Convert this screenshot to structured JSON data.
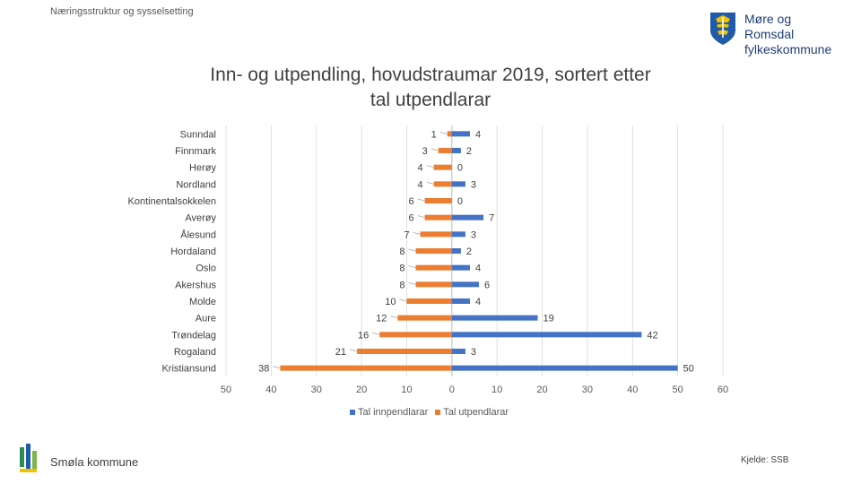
{
  "header": {
    "section": "Næringsstruktur og sysselsetting"
  },
  "logo": {
    "line1": "Møre og Romsdal",
    "line2": "fylkeskommune"
  },
  "footer": {
    "municipality": "Smøla kommune",
    "source": "Kjelde: SSB"
  },
  "colors": {
    "inn": "#4472c4",
    "ut": "#ed7d31",
    "grid": "#d9d9d9",
    "axis": "#bfbfbf"
  },
  "chart_data": {
    "type": "bar",
    "orientation": "horizontal",
    "title": "Inn- og utpendling, hovudstraumar 2019, sortert etter tal utpendlarar",
    "title_lines": [
      "Inn- og utpendling, hovudstraumar 2019, sortert etter",
      "tal utpendlarar"
    ],
    "categories": [
      "Sunndal",
      "Finnmark",
      "Herøy",
      "Nordland",
      "Kontinentalsokkelen",
      "Averøy",
      "Ålesund",
      "Hordaland",
      "Oslo",
      "Akershus",
      "Molde",
      "Aure",
      "Trøndelag",
      "Rogaland",
      "Kristiansund"
    ],
    "series": [
      {
        "name": "Tal innpendlarar",
        "values": [
          4,
          2,
          0,
          3,
          0,
          7,
          3,
          2,
          4,
          6,
          4,
          19,
          42,
          3,
          50
        ]
      },
      {
        "name": "Tal utpendlarar",
        "values": [
          1,
          3,
          4,
          4,
          6,
          6,
          7,
          8,
          8,
          8,
          10,
          12,
          16,
          21,
          38
        ]
      }
    ],
    "xlim": [
      -50,
      60
    ],
    "x_ticks": [
      -50,
      -40,
      -30,
      -20,
      -10,
      0,
      10,
      20,
      30,
      40,
      50,
      60
    ],
    "x_tick_labels": [
      "50",
      "40",
      "30",
      "20",
      "10",
      "0",
      "10",
      "20",
      "30",
      "40",
      "50",
      "60"
    ],
    "legend_position": "bottom",
    "grid": true
  }
}
